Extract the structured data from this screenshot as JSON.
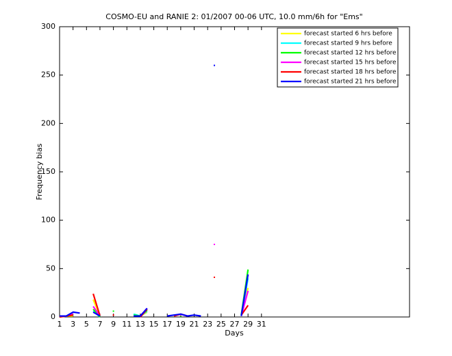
{
  "chart_data": {
    "type": "line",
    "title": "COSMO-EU and RANIE 2: 01/2007 00-06 UTC, 10.0 mm/6h for \"Ems\"",
    "x_label": "Days",
    "y_label": "Frequency bias",
    "x": [
      1,
      2,
      3,
      4,
      5,
      6,
      7,
      8,
      9,
      10,
      11,
      12,
      13,
      14,
      15,
      16,
      17,
      18,
      19,
      20,
      21,
      22,
      23,
      24,
      25,
      26,
      27,
      28,
      29,
      30,
      31
    ],
    "xlim": [
      1,
      53
    ],
    "xticks": [
      1,
      3,
      5,
      7,
      9,
      11,
      13,
      15,
      17,
      19,
      21,
      23,
      25,
      27,
      29,
      31
    ],
    "ylim": [
      0,
      300
    ],
    "yticks": [
      0,
      50,
      100,
      150,
      200,
      250,
      300
    ],
    "legend": "upper right",
    "series": [
      {
        "name": "forecast started 6 hrs before",
        "color": "#ffff00",
        "values": [
          0,
          1,
          1,
          null,
          null,
          18,
          1,
          null,
          null,
          null,
          null,
          null,
          1,
          5,
          null,
          null,
          null,
          null,
          null,
          null,
          null,
          null,
          null,
          null,
          null,
          null,
          null,
          1,
          30,
          null,
          null
        ]
      },
      {
        "name": "forecast started 9 hrs before",
        "color": "#00ffff",
        "values": [
          1,
          1,
          2,
          null,
          null,
          6,
          0,
          null,
          null,
          null,
          null,
          3,
          1,
          6,
          null,
          null,
          null,
          null,
          null,
          null,
          null,
          null,
          null,
          null,
          null,
          null,
          null,
          1,
          40,
          null,
          null
        ]
      },
      {
        "name": "forecast started 12 hrs before",
        "color": "#00ff00",
        "values": [
          1,
          1,
          2,
          null,
          null,
          8,
          0,
          null,
          6,
          null,
          null,
          2,
          1,
          7,
          null,
          null,
          null,
          null,
          1,
          null,
          null,
          null,
          null,
          null,
          null,
          null,
          null,
          2,
          49,
          null,
          null
        ]
      },
      {
        "name": "forecast started 15 hrs before",
        "color": "#ff00ff",
        "values": [
          1,
          1,
          3,
          null,
          null,
          11,
          1,
          null,
          null,
          null,
          null,
          null,
          1,
          9,
          null,
          null,
          null,
          null,
          2,
          null,
          null,
          null,
          null,
          75,
          null,
          null,
          null,
          1,
          27,
          null,
          null
        ]
      },
      {
        "name": "forecast started 18 hrs before",
        "color": "#ff0000",
        "values": [
          0,
          1,
          2,
          null,
          null,
          24,
          1,
          null,
          2,
          null,
          null,
          null,
          0,
          8,
          null,
          null,
          null,
          1,
          3,
          1,
          null,
          null,
          null,
          41,
          null,
          null,
          null,
          2,
          12,
          null,
          null
        ]
      },
      {
        "name": "forecast started 21 hrs before",
        "color": "#0000ff",
        "values": [
          1,
          1,
          5,
          4,
          null,
          5,
          1,
          null,
          null,
          null,
          null,
          1,
          1,
          9,
          null,
          null,
          1,
          2,
          3,
          1,
          2,
          1,
          null,
          260,
          null,
          null,
          null,
          1,
          44,
          null,
          null
        ]
      }
    ]
  }
}
